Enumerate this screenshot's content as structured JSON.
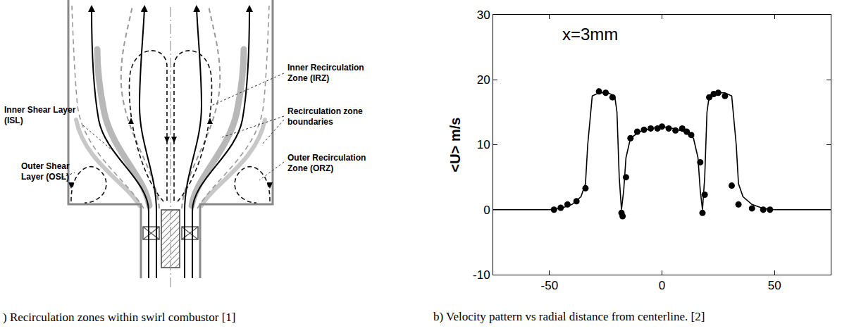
{
  "diagram": {
    "caption": ") Recirculation zones within swirl combustor [1]",
    "labels": {
      "irz": {
        "lines": [
          "Inner Recirculation",
          "Zone (IRZ)"
        ]
      },
      "boundaries": {
        "lines": [
          "Recirculation zone",
          "boundaries"
        ]
      },
      "orz": {
        "lines": [
          "Outer Recirculation",
          "Zone (ORZ)"
        ]
      },
      "isl": {
        "lines": [
          "Inner Shear Layer",
          "(ISL)"
        ]
      },
      "osl": {
        "lines": [
          "Outer Shear",
          "Layer (OSL)"
        ]
      }
    }
  },
  "chart_data": {
    "type": "line",
    "caption": "b) Velocity pattern vs radial distance from centerline. [2]",
    "ylabel": "<U> m/s",
    "annotations": [
      {
        "text": "x=3mm",
        "x": -32,
        "y": 27
      }
    ],
    "xlim": [
      -75,
      75
    ],
    "xticks": [
      -50,
      0,
      50
    ],
    "ylim": [
      -10,
      30
    ],
    "yticks": [
      -10,
      0,
      10,
      20,
      30
    ],
    "grid": false,
    "series": [
      {
        "type": "line",
        "color": "#000000",
        "line_style": "solid",
        "x": [
          -75,
          -50,
          -45,
          -40,
          -36,
          -34,
          -33,
          -31,
          -28,
          -24,
          -21,
          -20,
          -19,
          -18,
          -17,
          -16,
          -14,
          -10,
          -5,
          0,
          5,
          10,
          14,
          16,
          17,
          18,
          19,
          20,
          21,
          24,
          28,
          31,
          33,
          34,
          36,
          40,
          45,
          50,
          75
        ],
        "values": [
          0,
          0,
          0.2,
          0.8,
          2,
          4,
          10,
          17.5,
          18,
          18,
          17.5,
          15,
          5,
          0,
          3,
          8,
          11,
          12,
          12.5,
          12.8,
          12.5,
          12,
          11,
          8,
          3,
          0,
          5,
          15,
          17.5,
          18,
          18,
          17.5,
          10,
          4,
          2,
          0.8,
          0.2,
          0,
          0
        ]
      },
      {
        "type": "scatter",
        "marker": "circle",
        "color": "#000000",
        "x": [
          -48,
          -45,
          -42,
          -38,
          -34,
          -28,
          -25,
          -22,
          -18,
          -17.5,
          -16,
          -14,
          -11,
          -8,
          -5,
          -2,
          0,
          3,
          6,
          9,
          11,
          13,
          17,
          18,
          19,
          21,
          23,
          25,
          28,
          31,
          34,
          40,
          45,
          48
        ],
        "values": [
          0,
          0.3,
          0.8,
          1.3,
          3.3,
          18.2,
          18,
          17.3,
          -0.5,
          -1,
          5,
          11,
          12,
          12.3,
          12.5,
          12.5,
          12.8,
          12.5,
          12.2,
          12.5,
          12,
          11.5,
          7.3,
          -0.5,
          2.3,
          17.3,
          17.8,
          18,
          17.5,
          3.7,
          0.8,
          0.2,
          0,
          0
        ]
      }
    ]
  }
}
